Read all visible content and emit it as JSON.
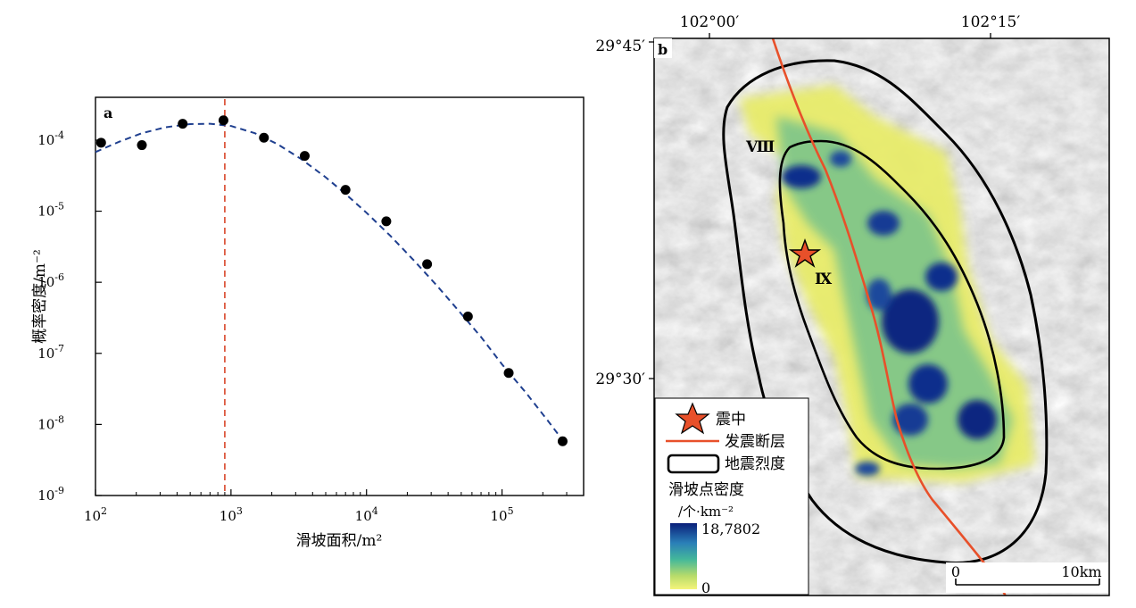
{
  "chart_data": [
    {
      "panel_label": "a",
      "type": "scatter",
      "xlabel": "滑坡面积/m²",
      "ylabel": "概率密度/m⁻²",
      "xscale": "log",
      "yscale": "log",
      "xlim": [
        100,
        400000
      ],
      "ylim": [
        1e-09,
        0.0004
      ],
      "x_ticks": [
        {
          "value": 100,
          "base": "10",
          "exp": "2"
        },
        {
          "value": 1000,
          "base": "10",
          "exp": "3"
        },
        {
          "value": 10000,
          "base": "10",
          "exp": "4"
        },
        {
          "value": 100000,
          "base": "10",
          "exp": "5"
        }
      ],
      "y_ticks": [
        {
          "value": 0.0001,
          "base": "10",
          "exp": "-4"
        },
        {
          "value": 1e-05,
          "base": "10",
          "exp": "-5"
        },
        {
          "value": 1e-06,
          "base": "10",
          "exp": "-6"
        },
        {
          "value": 1e-07,
          "base": "10",
          "exp": "-7"
        },
        {
          "value": 1e-08,
          "base": "10",
          "exp": "-8"
        },
        {
          "value": 1e-09,
          "base": "10",
          "exp": "-9"
        }
      ],
      "points": [
        {
          "x": 110,
          "y": 9.2e-05
        },
        {
          "x": 220,
          "y": 8.5e-05
        },
        {
          "x": 440,
          "y": 0.00017
        },
        {
          "x": 880,
          "y": 0.00019
        },
        {
          "x": 1750,
          "y": 0.000108
        },
        {
          "x": 3500,
          "y": 6e-05
        },
        {
          "x": 7000,
          "y": 2e-05
        },
        {
          "x": 14000,
          "y": 7.2e-06
        },
        {
          "x": 28000,
          "y": 1.8e-06
        },
        {
          "x": 56000,
          "y": 3.3e-07
        },
        {
          "x": 112000,
          "y": 5.3e-08
        },
        {
          "x": 280000,
          "y": 5.8e-09
        }
      ],
      "fit_curve": [
        {
          "x": 100,
          "y": 6.8e-05
        },
        {
          "x": 150,
          "y": 9.5e-05
        },
        {
          "x": 220,
          "y": 0.000125
        },
        {
          "x": 330,
          "y": 0.000152
        },
        {
          "x": 500,
          "y": 0.000168
        },
        {
          "x": 700,
          "y": 0.00017
        },
        {
          "x": 1000,
          "y": 0.000158
        },
        {
          "x": 1500,
          "y": 0.000125
        },
        {
          "x": 2200,
          "y": 8.8e-05
        },
        {
          "x": 3300,
          "y": 5.4e-05
        },
        {
          "x": 5000,
          "y": 3e-05
        },
        {
          "x": 7000,
          "y": 1.75e-05
        },
        {
          "x": 10000,
          "y": 9.5e-06
        },
        {
          "x": 15000,
          "y": 4.5e-06
        },
        {
          "x": 22000,
          "y": 2.1e-06
        },
        {
          "x": 33000,
          "y": 9e-07
        },
        {
          "x": 50000,
          "y": 3.6e-07
        },
        {
          "x": 70000,
          "y": 1.7e-07
        },
        {
          "x": 100000,
          "y": 7e-08
        },
        {
          "x": 150000,
          "y": 2.8e-08
        },
        {
          "x": 220000,
          "y": 1.1e-08
        },
        {
          "x": 280000,
          "y": 6e-09
        }
      ],
      "threshold_x": 900,
      "colors": {
        "points": "#000000",
        "fit": "#1f3f8f",
        "threshold": "#d9472b"
      }
    },
    {
      "panel_label": "b",
      "type": "heatmap",
      "lon_labels": [
        "102°00′",
        "102°15′"
      ],
      "lat_labels": [
        "29°45′",
        "29°30′"
      ],
      "intensity_labels": [
        "Ⅷ",
        "Ⅸ"
      ],
      "legend": {
        "epicenter": "震中",
        "fault": "发震断层",
        "intensity": "地震烈度",
        "density_title": "滑坡点密度",
        "density_unit": "/个·km⁻²",
        "max": "18,7802",
        "min": "0"
      },
      "scalebar": {
        "start": "0",
        "end": "10km"
      },
      "colors": {
        "fault": "#e8502a",
        "high": "#0a2a8a",
        "mid": "#3cb39a",
        "low": "#f2f27a",
        "epicenter": "#e8502a"
      }
    }
  ]
}
